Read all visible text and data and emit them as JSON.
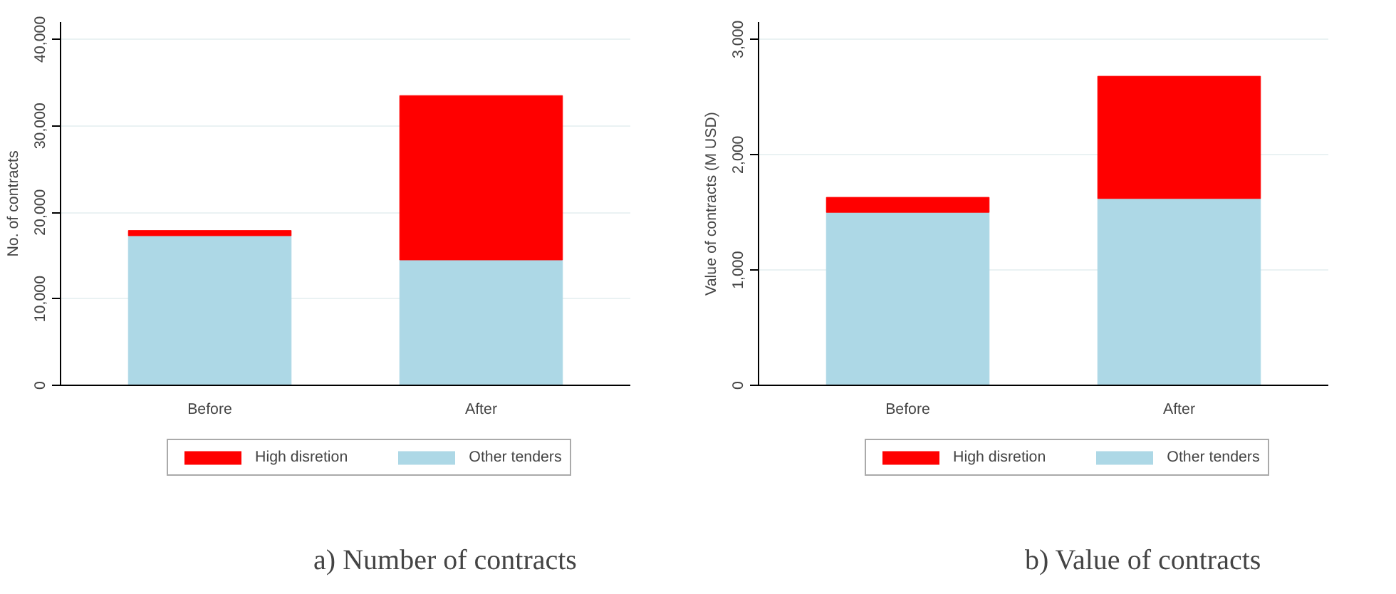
{
  "chart_data": [
    {
      "type": "bar",
      "title": "a) Number of contracts",
      "ylabel": "No. of contracts",
      "categories": [
        "Before",
        "After"
      ],
      "stacked": true,
      "series": [
        {
          "name": "Other tenders",
          "color": "#add8e6",
          "values": [
            17300,
            14500
          ]
        },
        {
          "name": "High disretion",
          "color": "#ff0000",
          "values": [
            600,
            19000
          ]
        }
      ],
      "ylim": [
        0,
        42000
      ],
      "yticks": [
        {
          "value": 0,
          "label": "0"
        },
        {
          "value": 10000,
          "label": "10,000"
        },
        {
          "value": 20000,
          "label": "20,000"
        },
        {
          "value": 30000,
          "label": "30,000"
        },
        {
          "value": 40000,
          "label": "40,000"
        }
      ],
      "grid": "y",
      "legend": "bottom"
    },
    {
      "type": "bar",
      "title": "b) Value of contracts",
      "ylabel": "Value of contracts (M USD)",
      "categories": [
        "Before",
        "After"
      ],
      "stacked": true,
      "series": [
        {
          "name": "Other tenders",
          "color": "#add8e6",
          "values": [
            1500,
            1620
          ]
        },
        {
          "name": "High disretion",
          "color": "#ff0000",
          "values": [
            130,
            1060
          ]
        }
      ],
      "ylim": [
        0,
        3150
      ],
      "yticks": [
        {
          "value": 0,
          "label": "0"
        },
        {
          "value": 1000,
          "label": "1,000"
        },
        {
          "value": 2000,
          "label": "2,000"
        },
        {
          "value": 3000,
          "label": "3,000"
        }
      ],
      "grid": "y",
      "legend": "bottom"
    }
  ]
}
